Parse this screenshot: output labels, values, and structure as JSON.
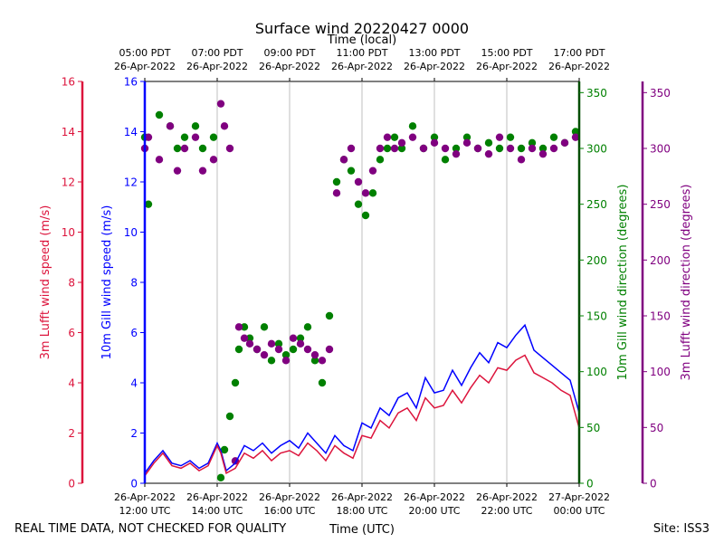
{
  "chart_data": {
    "type": "line",
    "title": "Surface wind 20220427 0000",
    "top_axis_label": "Time (local)",
    "xlabel": "Time (UTC)",
    "footer_left": "REAL TIME DATA, NOT CHECKED FOR QUALITY",
    "footer_right": "Site: ISS3",
    "xlim_hours": [
      12,
      24
    ],
    "bottom_ticks": [
      {
        "hour": 12,
        "line1": "26-Apr-2022",
        "line2": "12:00 UTC"
      },
      {
        "hour": 14,
        "line1": "26-Apr-2022",
        "line2": "14:00 UTC"
      },
      {
        "hour": 16,
        "line1": "26-Apr-2022",
        "line2": "16:00 UTC"
      },
      {
        "hour": 18,
        "line1": "26-Apr-2022",
        "line2": "18:00 UTC"
      },
      {
        "hour": 20,
        "line1": "26-Apr-2022",
        "line2": "20:00 UTC"
      },
      {
        "hour": 22,
        "line1": "26-Apr-2022",
        "line2": "22:00 UTC"
      },
      {
        "hour": 24,
        "line1": "27-Apr-2022",
        "line2": "00:00 UTC"
      }
    ],
    "top_ticks": [
      {
        "hour": 12,
        "line1": "05:00 PDT",
        "line2": "26-Apr-2022"
      },
      {
        "hour": 14,
        "line1": "07:00 PDT",
        "line2": "26-Apr-2022"
      },
      {
        "hour": 16,
        "line1": "09:00 PDT",
        "line2": "26-Apr-2022"
      },
      {
        "hour": 18,
        "line1": "11:00 PDT",
        "line2": "26-Apr-2022"
      },
      {
        "hour": 20,
        "line1": "13:00 PDT",
        "line2": "26-Apr-2022"
      },
      {
        "hour": 22,
        "line1": "15:00 PDT",
        "line2": "26-Apr-2022"
      },
      {
        "hour": 24,
        "line1": "17:00 PDT",
        "line2": "26-Apr-2022"
      }
    ],
    "axes": {
      "lufft_speed": {
        "label": "3m Lufft wind speed (m/s)",
        "color": "#dc143c",
        "ylim": [
          0,
          16
        ],
        "ticks": [
          0,
          2,
          4,
          6,
          8,
          10,
          12,
          14,
          16
        ]
      },
      "gill_speed": {
        "label": "10m Gill wind speed (m/s)",
        "color": "#0000ff",
        "ylim": [
          0,
          16
        ],
        "ticks": [
          0,
          2,
          4,
          6,
          8,
          10,
          12,
          14,
          16
        ]
      },
      "gill_dir": {
        "label": "10m Gill wind direction (degrees)",
        "color": "#008000",
        "ylim": [
          0,
          360
        ],
        "ticks": [
          0,
          50,
          100,
          150,
          200,
          250,
          300,
          350
        ]
      },
      "lufft_dir": {
        "label": "3m Lufft wind direction (degrees)",
        "color": "#800080",
        "ylim": [
          0,
          360
        ],
        "ticks": [
          0,
          50,
          100,
          150,
          200,
          250,
          300,
          350
        ]
      }
    },
    "series": [
      {
        "name": "10m Gill wind speed",
        "kind": "line",
        "axis": "gill_speed",
        "color": "#0000ff",
        "x": [
          12.0,
          12.25,
          12.5,
          12.75,
          13.0,
          13.25,
          13.5,
          13.75,
          14.0,
          14.1,
          14.25,
          14.5,
          14.75,
          15.0,
          15.25,
          15.5,
          15.75,
          16.0,
          16.25,
          16.5,
          16.75,
          17.0,
          17.25,
          17.5,
          17.75,
          18.0,
          18.25,
          18.5,
          18.75,
          19.0,
          19.25,
          19.5,
          19.75,
          20.0,
          20.25,
          20.5,
          20.75,
          21.0,
          21.25,
          21.5,
          21.75,
          22.0,
          22.25,
          22.5,
          22.75,
          23.0,
          23.25,
          23.5,
          23.75,
          24.0
        ],
        "values": [
          0.4,
          0.9,
          1.3,
          0.8,
          0.7,
          0.9,
          0.6,
          0.8,
          1.6,
          1.3,
          0.5,
          0.8,
          1.5,
          1.3,
          1.6,
          1.2,
          1.5,
          1.7,
          1.4,
          2.0,
          1.6,
          1.2,
          1.9,
          1.5,
          1.3,
          2.4,
          2.2,
          3.0,
          2.7,
          3.4,
          3.6,
          3.0,
          4.2,
          3.6,
          3.7,
          4.5,
          3.9,
          4.6,
          5.2,
          4.8,
          5.6,
          5.4,
          5.9,
          6.3,
          5.3,
          5.0,
          4.7,
          4.4,
          4.1,
          2.8
        ]
      },
      {
        "name": "3m Lufft wind speed",
        "kind": "line",
        "axis": "lufft_speed",
        "color": "#dc143c",
        "x": [
          12.0,
          12.25,
          12.5,
          12.75,
          13.0,
          13.25,
          13.5,
          13.75,
          14.0,
          14.1,
          14.25,
          14.5,
          14.75,
          15.0,
          15.25,
          15.5,
          15.75,
          16.0,
          16.25,
          16.5,
          16.75,
          17.0,
          17.25,
          17.5,
          17.75,
          18.0,
          18.25,
          18.5,
          18.75,
          19.0,
          19.25,
          19.5,
          19.75,
          20.0,
          20.25,
          20.5,
          20.75,
          21.0,
          21.25,
          21.5,
          21.75,
          22.0,
          22.25,
          22.5,
          22.75,
          23.0,
          23.25,
          23.5,
          23.75,
          24.0
        ],
        "values": [
          0.3,
          0.8,
          1.2,
          0.7,
          0.6,
          0.8,
          0.5,
          0.7,
          1.5,
          1.2,
          0.4,
          0.6,
          1.2,
          1.0,
          1.3,
          0.9,
          1.2,
          1.3,
          1.1,
          1.6,
          1.3,
          0.9,
          1.5,
          1.2,
          1.0,
          1.9,
          1.8,
          2.5,
          2.2,
          2.8,
          3.0,
          2.5,
          3.4,
          3.0,
          3.1,
          3.7,
          3.2,
          3.8,
          4.3,
          4.0,
          4.6,
          4.5,
          4.9,
          5.1,
          4.4,
          4.2,
          4.0,
          3.7,
          3.5,
          2.2
        ]
      },
      {
        "name": "10m Gill wind direction",
        "kind": "scatter",
        "axis": "gill_dir",
        "color": "#008000",
        "x": [
          12.0,
          12.1,
          12.4,
          12.7,
          12.9,
          13.1,
          13.4,
          13.6,
          13.9,
          14.1,
          14.2,
          14.35,
          14.5,
          14.6,
          14.75,
          14.9,
          15.1,
          15.3,
          15.5,
          15.7,
          15.9,
          16.1,
          16.3,
          16.5,
          16.7,
          16.9,
          17.1,
          17.3,
          17.5,
          17.7,
          17.9,
          18.1,
          18.3,
          18.5,
          18.7,
          18.9,
          19.1,
          19.4,
          19.7,
          20.0,
          20.3,
          20.6,
          20.9,
          21.2,
          21.5,
          21.8,
          22.1,
          22.4,
          22.7,
          23.0,
          23.3,
          23.6,
          23.9
        ],
        "values": [
          310,
          250,
          330,
          320,
          300,
          310,
          320,
          300,
          310,
          5,
          30,
          60,
          90,
          120,
          140,
          130,
          120,
          140,
          110,
          125,
          115,
          120,
          130,
          140,
          110,
          90,
          150,
          270,
          290,
          280,
          250,
          240,
          260,
          290,
          300,
          310,
          300,
          320,
          300,
          310,
          290,
          300,
          310,
          300,
          305,
          300,
          310,
          300,
          305,
          300,
          310,
          305,
          315
        ]
      },
      {
        "name": "3m Lufft wind direction",
        "kind": "scatter",
        "axis": "lufft_dir",
        "color": "#800080",
        "x": [
          12.0,
          12.1,
          12.4,
          12.7,
          12.9,
          13.1,
          13.4,
          13.6,
          13.9,
          14.1,
          14.2,
          14.35,
          14.5,
          14.6,
          14.75,
          14.9,
          15.1,
          15.3,
          15.5,
          15.7,
          15.9,
          16.1,
          16.3,
          16.5,
          16.7,
          16.9,
          17.1,
          17.3,
          17.5,
          17.7,
          17.9,
          18.1,
          18.3,
          18.5,
          18.7,
          18.9,
          19.1,
          19.4,
          19.7,
          20.0,
          20.3,
          20.6,
          20.9,
          21.2,
          21.5,
          21.8,
          22.1,
          22.4,
          22.7,
          23.0,
          23.3,
          23.6,
          23.9
        ],
        "values": [
          300,
          310,
          290,
          320,
          280,
          300,
          310,
          280,
          290,
          340,
          320,
          300,
          20,
          140,
          130,
          125,
          120,
          115,
          125,
          120,
          110,
          130,
          125,
          120,
          115,
          110,
          120,
          260,
          290,
          300,
          270,
          260,
          280,
          300,
          310,
          300,
          305,
          310,
          300,
          305,
          300,
          295,
          305,
          300,
          295,
          310,
          300,
          290,
          300,
          295,
          300,
          305,
          310
        ]
      }
    ]
  }
}
